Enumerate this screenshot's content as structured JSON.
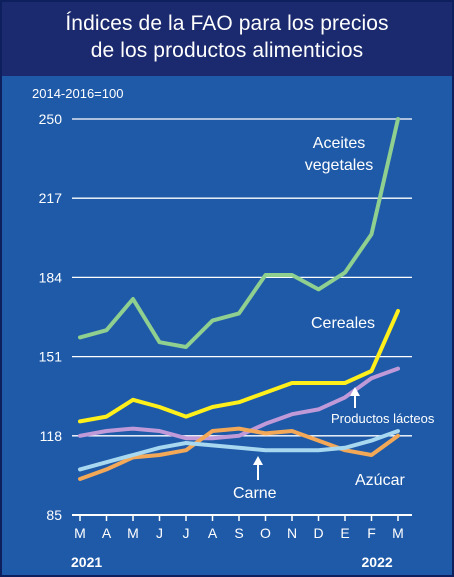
{
  "chart_data": {
    "type": "line",
    "title_lines": [
      "Índices de la FAO para los precios",
      "de los productos alimenticios"
    ],
    "unit_note": "2014-2016=100",
    "categories": [
      "M",
      "A",
      "M",
      "J",
      "J",
      "A",
      "S",
      "O",
      "N",
      "D",
      "E",
      "F",
      "M"
    ],
    "year_labels": [
      {
        "text": "2021",
        "at_index": 0
      },
      {
        "text": "2022",
        "at_index": 11
      }
    ],
    "ylim": [
      85,
      250
    ],
    "yticks": [
      85,
      118,
      151,
      184,
      217,
      250
    ],
    "grid": true,
    "series": [
      {
        "name": "Aceites vegetales",
        "label_lines": [
          "Aceites",
          "vegetales"
        ],
        "color": "#8fcf8f",
        "values": [
          159,
          162,
          175,
          157,
          155,
          166,
          169,
          185,
          185,
          179,
          186,
          202,
          250
        ]
      },
      {
        "name": "Cereales",
        "label_lines": [
          "Cereales"
        ],
        "color": "#ffef1a",
        "values": [
          124,
          126,
          133,
          130,
          126,
          130,
          132,
          136,
          140,
          140,
          140,
          145,
          170
        ]
      },
      {
        "name": "Productos lácteos",
        "label_lines": [
          "Productos lácteos"
        ],
        "color": "#c09ad8",
        "values": [
          118,
          120,
          121,
          120,
          117,
          117,
          118,
          123,
          127,
          129,
          134,
          142,
          146
        ]
      },
      {
        "name": "Azúcar",
        "label_lines": [
          "Azúcar"
        ],
        "color": "#f2a857",
        "values": [
          100,
          104,
          109,
          110,
          112,
          120,
          121,
          119,
          120,
          116,
          112,
          110,
          118
        ]
      },
      {
        "name": "Carne",
        "label_lines": [
          "Carne"
        ],
        "color": "#a8d8f0",
        "values": [
          104,
          107,
          110,
          113,
          115,
          114,
          113,
          112,
          112,
          112,
          113,
          116,
          120
        ]
      }
    ]
  },
  "colors": {
    "background": "#1f5aa8",
    "header": "#1b2a6e",
    "gridline": "#ffffff",
    "baseline": "#ffffff",
    "label_arrow": "#ffffff"
  }
}
